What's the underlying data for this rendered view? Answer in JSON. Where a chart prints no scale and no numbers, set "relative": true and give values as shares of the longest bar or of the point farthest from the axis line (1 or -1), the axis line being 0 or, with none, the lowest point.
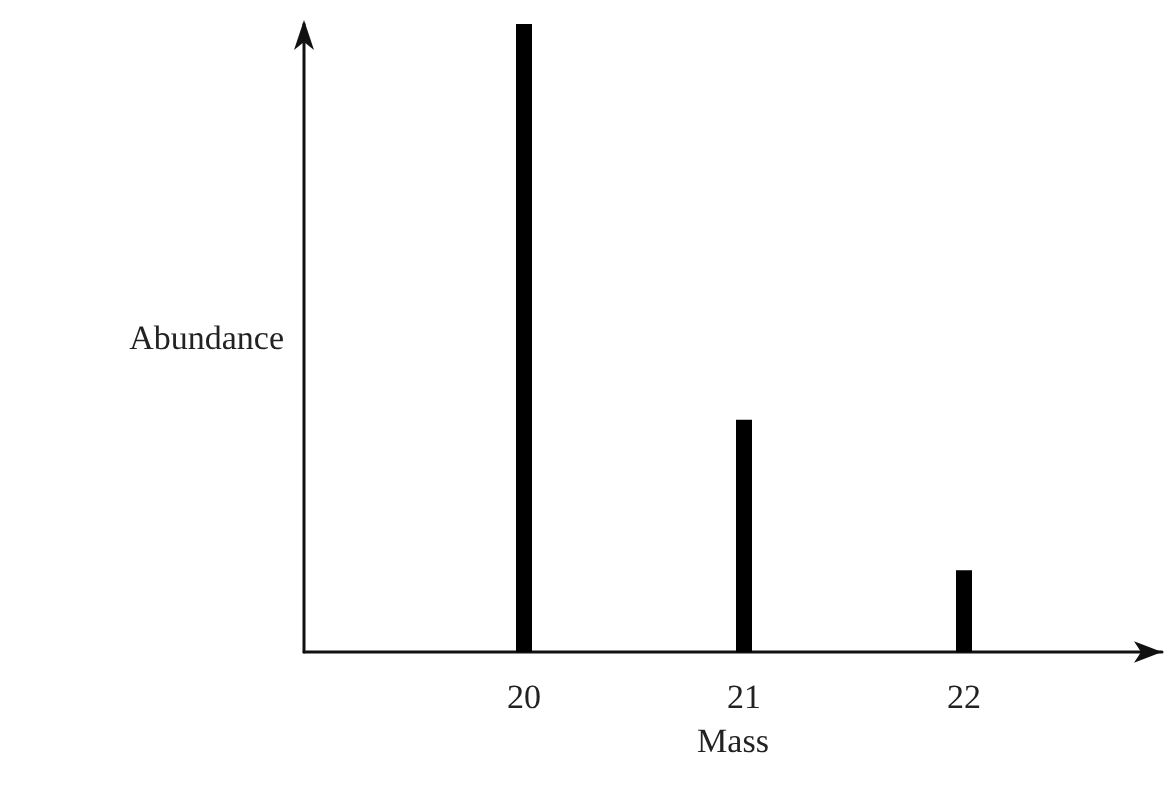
{
  "chart_data": {
    "type": "bar",
    "relative": true,
    "xlabel": "Mass",
    "ylabel": "Abundance",
    "x": [
      20,
      21,
      22
    ],
    "values": [
      1,
      0.37,
      0.13
    ],
    "color": "#000000",
    "xlim": [
      19,
      22.9
    ],
    "xticks": [
      20,
      21,
      22
    ]
  }
}
